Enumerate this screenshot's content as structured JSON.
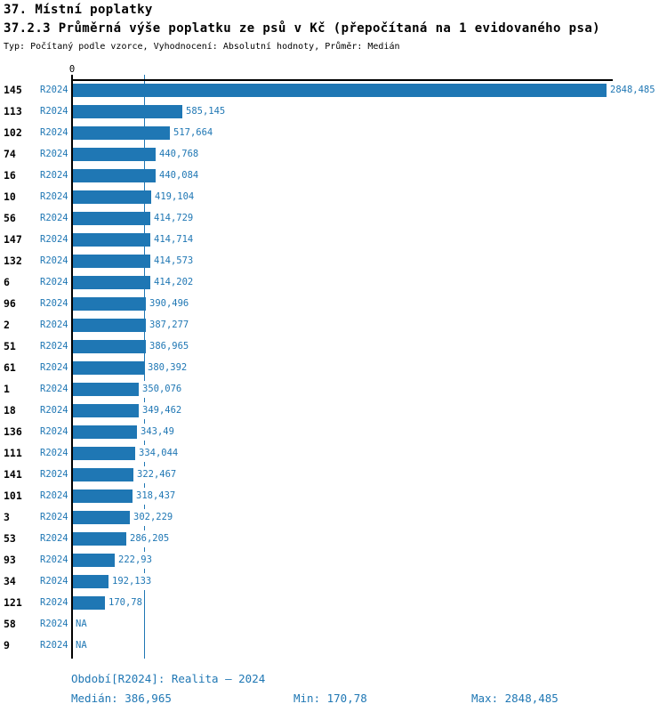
{
  "header": {
    "title_line1": "37. Místní poplatky",
    "title_line2": "37.2.3 Průměrná výše poplatku ze psů v Kč (přepočítaná na 1 evidovaného psa)",
    "subtitle": "Typ: Počítaný podle vzorce, Vyhodnocení: Absolutní hodnoty, Průměr: Medián"
  },
  "chart_data": {
    "type": "bar",
    "orientation": "horizontal",
    "title": "37.2.3 Průměrná výše poplatku ze psů v Kč (přepočítaná na 1 evidovaného psa)",
    "period": "R2024",
    "x_axis": {
      "zero_label": "0",
      "min": 0,
      "max_value": 2848.485,
      "grid": false
    },
    "median": {
      "value": 386.965,
      "label": "386,965"
    },
    "na_label": "NA",
    "rows": [
      {
        "id": "145",
        "period": "R2024",
        "value": 2848.485,
        "label": "2848,485"
      },
      {
        "id": "113",
        "period": "R2024",
        "value": 585.145,
        "label": "585,145"
      },
      {
        "id": "102",
        "period": "R2024",
        "value": 517.664,
        "label": "517,664"
      },
      {
        "id": "74",
        "period": "R2024",
        "value": 440.768,
        "label": "440,768"
      },
      {
        "id": "16",
        "period": "R2024",
        "value": 440.084,
        "label": "440,084"
      },
      {
        "id": "10",
        "period": "R2024",
        "value": 419.104,
        "label": "419,104"
      },
      {
        "id": "56",
        "period": "R2024",
        "value": 414.729,
        "label": "414,729"
      },
      {
        "id": "147",
        "period": "R2024",
        "value": 414.714,
        "label": "414,714"
      },
      {
        "id": "132",
        "period": "R2024",
        "value": 414.573,
        "label": "414,573"
      },
      {
        "id": "6",
        "period": "R2024",
        "value": 414.202,
        "label": "414,202"
      },
      {
        "id": "96",
        "period": "R2024",
        "value": 390.496,
        "label": "390,496"
      },
      {
        "id": "2",
        "period": "R2024",
        "value": 387.277,
        "label": "387,277"
      },
      {
        "id": "51",
        "period": "R2024",
        "value": 386.965,
        "label": "386,965"
      },
      {
        "id": "61",
        "period": "R2024",
        "value": 380.392,
        "label": "380,392"
      },
      {
        "id": "1",
        "period": "R2024",
        "value": 350.076,
        "label": "350,076"
      },
      {
        "id": "18",
        "period": "R2024",
        "value": 349.462,
        "label": "349,462"
      },
      {
        "id": "136",
        "period": "R2024",
        "value": 343.49,
        "label": "343,49"
      },
      {
        "id": "111",
        "period": "R2024",
        "value": 334.044,
        "label": "334,044"
      },
      {
        "id": "141",
        "period": "R2024",
        "value": 322.467,
        "label": "322,467"
      },
      {
        "id": "101",
        "period": "R2024",
        "value": 318.437,
        "label": "318,437"
      },
      {
        "id": "3",
        "period": "R2024",
        "value": 302.229,
        "label": "302,229"
      },
      {
        "id": "53",
        "period": "R2024",
        "value": 286.205,
        "label": "286,205"
      },
      {
        "id": "93",
        "period": "R2024",
        "value": 222.93,
        "label": "222,93"
      },
      {
        "id": "34",
        "period": "R2024",
        "value": 192.133,
        "label": "192,133"
      },
      {
        "id": "121",
        "period": "R2024",
        "value": 170.78,
        "label": "170,78"
      },
      {
        "id": "58",
        "period": "R2024",
        "value": null,
        "label": "NA"
      },
      {
        "id": "9",
        "period": "R2024",
        "value": null,
        "label": "NA"
      }
    ],
    "stats": {
      "median": "386,965",
      "min": "170,78",
      "max": "2848,485"
    }
  },
  "footer": {
    "period_line": "Období[R2024]: Realita – 2024",
    "median": "Medián: 386,965",
    "min": "Min: 170,78",
    "max": "Max: 2848,485"
  },
  "colors": {
    "bar": "#1F77B4",
    "blue_text": "#1F77B4",
    "axis": "#000000",
    "background": "#FFFFFF"
  }
}
